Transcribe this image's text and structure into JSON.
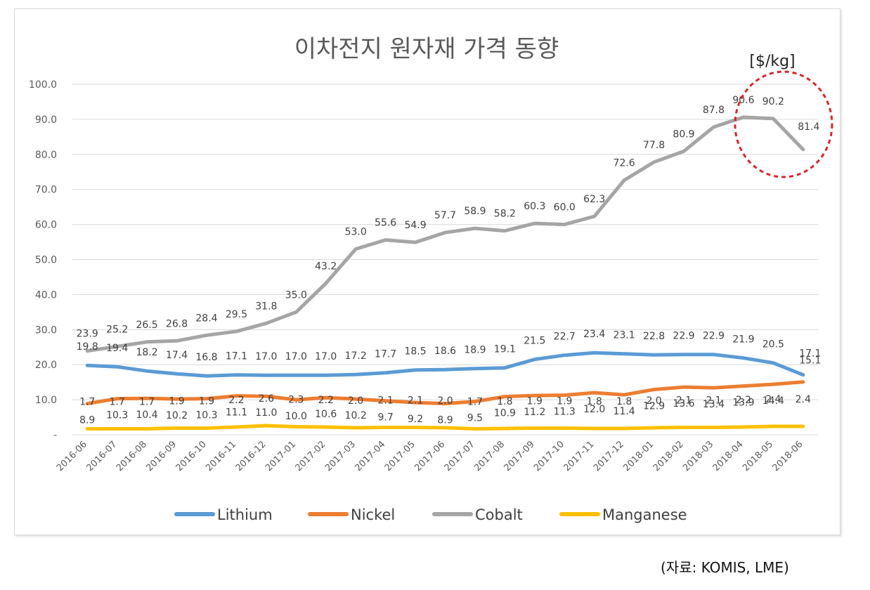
{
  "chart_data": {
    "type": "line",
    "title": "이차전지 원자재 가격 동향",
    "unit_label": "[$/kg]",
    "xlabel": "",
    "ylabel": "",
    "ylim": [
      0,
      100
    ],
    "yticks": [
      "-",
      "10.0",
      "20.0",
      "30.0",
      "40.0",
      "50.0",
      "60.0",
      "70.0",
      "80.0",
      "90.0",
      "100.0"
    ],
    "grid": true,
    "legend_position": "bottom",
    "categories": [
      "2016-06",
      "2016-07",
      "2016-08",
      "2016-09",
      "2016-10",
      "2016-11",
      "2016-12",
      "2017-01",
      "2017-02",
      "2017-03",
      "2017-04",
      "2017-05",
      "2017-06",
      "2017-07",
      "2017-08",
      "2017-09",
      "2017-10",
      "2017-11",
      "2017-12",
      "2018-01",
      "2018-02",
      "2018-03",
      "2018-04",
      "2018-05",
      "2018-06"
    ],
    "series": [
      {
        "name": "Lithium",
        "color": "#5b9bd5",
        "values": [
          19.8,
          19.4,
          18.2,
          17.4,
          16.8,
          17.1,
          17.0,
          17.0,
          17.0,
          17.2,
          17.7,
          18.5,
          18.6,
          18.9,
          19.1,
          21.5,
          22.7,
          23.4,
          23.1,
          22.8,
          22.9,
          22.9,
          21.9,
          20.5,
          17.1
        ],
        "labels": [
          "19.8",
          "19.4",
          "18.2",
          "17.4",
          "16.8",
          "17.1",
          "17.0",
          "17.0",
          "17.0",
          "17.2",
          "17.7",
          "18.5",
          "18.6",
          "18.9",
          "19.1",
          "21.5",
          "22.7",
          "23.4",
          "23.1",
          "22.8",
          "22.9",
          "22.9",
          "21.9",
          "20.5",
          "17.1"
        ]
      },
      {
        "name": "Nickel",
        "color": "#ed7d31",
        "values": [
          8.9,
          10.3,
          10.4,
          10.2,
          10.3,
          11.1,
          11.0,
          10.0,
          10.6,
          10.2,
          9.7,
          9.2,
          8.9,
          9.5,
          10.9,
          11.2,
          11.3,
          12.0,
          11.4,
          12.9,
          13.6,
          13.4,
          13.9,
          14.4,
          15.1
        ],
        "labels": [
          "8.9",
          "10.3",
          "10.4",
          "10.2",
          "10.3",
          "11.1",
          "11.0",
          "10.0",
          "10.6",
          "10.2",
          "9.7",
          "9.2",
          "8.9",
          "9.5",
          "10.9",
          "11.2",
          "11.3",
          "12.0",
          "11.4",
          "12.9",
          "13.6",
          "13.4",
          "13.9",
          "14.4",
          "15.1"
        ]
      },
      {
        "name": "Cobalt",
        "color": "#a5a5a5",
        "values": [
          23.9,
          25.2,
          26.5,
          26.8,
          28.4,
          29.5,
          31.8,
          35.0,
          43.2,
          53.0,
          55.6,
          54.9,
          57.7,
          58.9,
          58.2,
          60.3,
          60.0,
          62.3,
          72.6,
          77.8,
          80.9,
          87.8,
          90.6,
          90.2,
          81.4
        ],
        "labels": [
          "23.9",
          "25.2",
          "26.5",
          "26.8",
          "28.4",
          "29.5",
          "31.8",
          "35.0",
          "43.2",
          "53.0",
          "55.6",
          "54.9",
          "57.7",
          "58.9",
          "58.2",
          "60.3",
          "60.0",
          "62.3",
          "72.6",
          "77.8",
          "80.9",
          "87.8",
          "90.6",
          "90.2",
          "81.4"
        ]
      },
      {
        "name": "Manganese",
        "color": "#ffc000",
        "values": [
          1.7,
          1.7,
          1.7,
          1.9,
          1.9,
          2.2,
          2.6,
          2.3,
          2.2,
          2.0,
          2.1,
          2.1,
          2.0,
          1.7,
          1.8,
          1.9,
          1.9,
          1.8,
          1.8,
          2.0,
          2.1,
          2.1,
          2.2,
          2.4,
          2.4
        ],
        "labels": [
          "1.7",
          "1.7",
          "1.7",
          "1.9",
          "1.9",
          "2.2",
          "2.6",
          "2.3",
          "2.2",
          "2.0",
          "2.1",
          "2.1",
          "2.0",
          "1.7",
          "1.8",
          "1.9",
          "1.9",
          "1.8",
          "1.8",
          "2.0",
          "2.1",
          "2.1",
          "2.2",
          "2.4",
          "2.4"
        ]
      }
    ],
    "annotation": {
      "shape": "dashed-ellipse",
      "color": "#d9252b",
      "target": "Cobalt 2018-04 to 2018-06"
    }
  },
  "source_note": "(자료: KOMIS, LME)"
}
